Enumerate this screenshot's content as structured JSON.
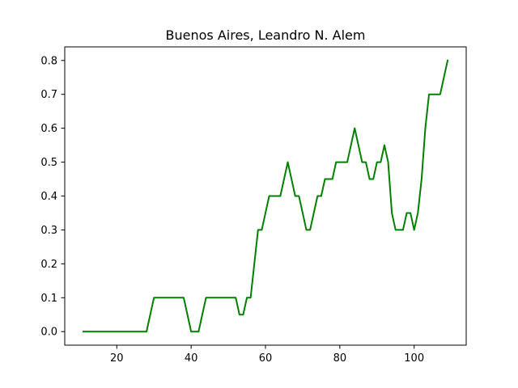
{
  "chart_data": {
    "type": "line",
    "title": "Buenos Aires, Leandro N. Alem",
    "xlabel": "",
    "ylabel": "",
    "xlim": [
      6,
      114
    ],
    "ylim": [
      -0.04,
      0.84
    ],
    "x_ticks": [
      20,
      40,
      60,
      80,
      100
    ],
    "y_ticks": [
      0.0,
      0.1,
      0.2,
      0.3,
      0.4,
      0.5,
      0.6,
      0.7,
      0.8
    ],
    "x_tick_labels": [
      "20",
      "40",
      "60",
      "80",
      "100"
    ],
    "y_tick_labels": [
      "0.0",
      "0.1",
      "0.2",
      "0.3",
      "0.4",
      "0.5",
      "0.6",
      "0.7",
      "0.8"
    ],
    "grid": false,
    "series": [
      {
        "color": "#008000",
        "x": [
          11,
          12,
          13,
          14,
          15,
          16,
          17,
          18,
          19,
          20,
          21,
          22,
          23,
          24,
          25,
          26,
          27,
          28,
          29,
          30,
          31,
          32,
          33,
          34,
          35,
          36,
          37,
          38,
          39,
          40,
          41,
          42,
          43,
          44,
          45,
          46,
          47,
          48,
          49,
          50,
          51,
          52,
          53,
          54,
          55,
          56,
          57,
          58,
          59,
          60,
          61,
          62,
          63,
          64,
          65,
          66,
          67,
          68,
          69,
          70,
          71,
          72,
          73,
          74,
          75,
          76,
          77,
          78,
          79,
          80,
          81,
          82,
          83,
          84,
          85,
          86,
          87,
          88,
          89,
          90,
          91,
          92,
          93,
          94,
          95,
          96,
          97,
          98,
          99,
          100,
          101,
          102,
          103,
          104,
          105,
          106,
          107,
          108,
          109
        ],
        "y": [
          0,
          0,
          0,
          0,
          0,
          0,
          0,
          0,
          0,
          0,
          0,
          0,
          0,
          0,
          0,
          0,
          0,
          0,
          0.05,
          0.1,
          0.1,
          0.1,
          0.1,
          0.1,
          0.1,
          0.1,
          0.1,
          0.1,
          0.05,
          0,
          0,
          0,
          0.05,
          0.1,
          0.1,
          0.1,
          0.1,
          0.1,
          0.1,
          0.1,
          0.1,
          0.1,
          0.05,
          0.05,
          0.1,
          0.1,
          0.2,
          0.3,
          0.3,
          0.35,
          0.4,
          0.4,
          0.4,
          0.4,
          0.45,
          0.5,
          0.45,
          0.4,
          0.4,
          0.35,
          0.3,
          0.3,
          0.35,
          0.4,
          0.4,
          0.45,
          0.45,
          0.45,
          0.5,
          0.5,
          0.5,
          0.5,
          0.55,
          0.6,
          0.55,
          0.5,
          0.5,
          0.45,
          0.45,
          0.5,
          0.5,
          0.55,
          0.5,
          0.35,
          0.3,
          0.3,
          0.3,
          0.35,
          0.35,
          0.3,
          0.35,
          0.45,
          0.6,
          0.7,
          0.7,
          0.7,
          0.7,
          0.75,
          0.8
        ]
      }
    ]
  }
}
